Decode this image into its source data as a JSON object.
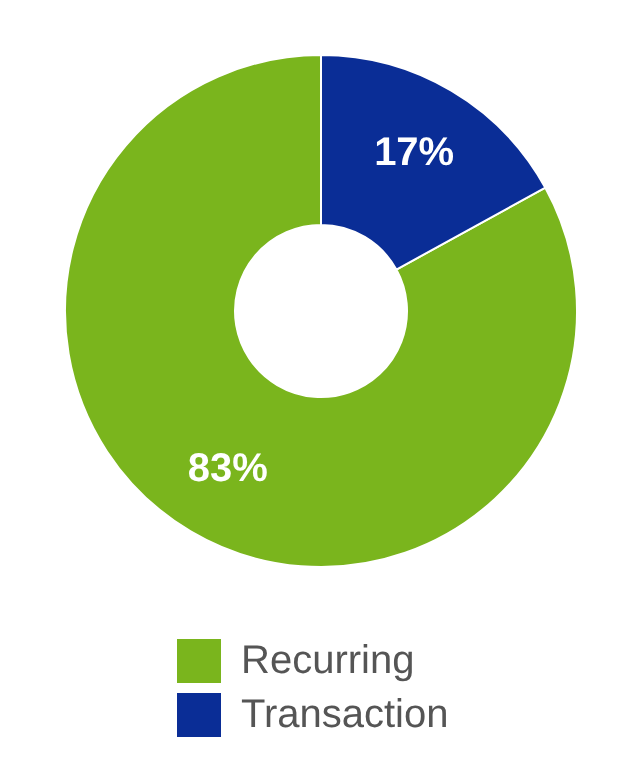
{
  "chart_data": {
    "type": "donut",
    "categories": [
      "Recurring",
      "Transaction"
    ],
    "values": [
      83,
      17
    ],
    "colors": [
      "#7ab51d",
      "#0a2d96"
    ],
    "value_labels": [
      "83%",
      "17%"
    ],
    "legend": "bottom"
  }
}
